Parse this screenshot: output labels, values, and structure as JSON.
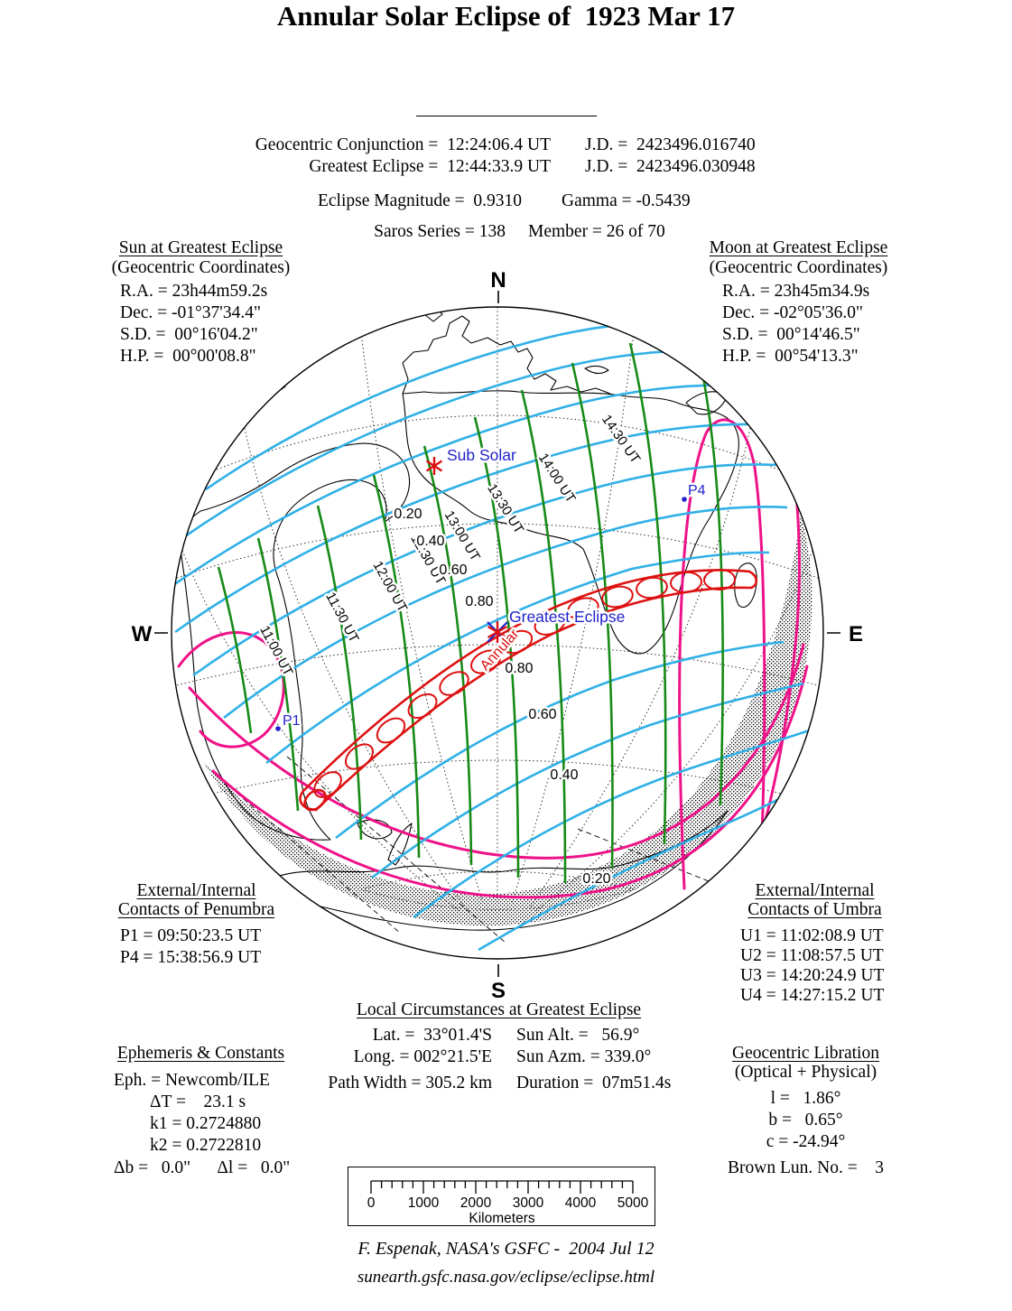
{
  "title": "Annular Solar Eclipse of  1923 Mar 17",
  "header": {
    "conjunction": "Geocentric Conjunction =  12:24:06.4 UT",
    "conjunction_jd": "J.D. =  2423496.016740",
    "greatest": "Greatest Eclipse =  12:44:33.9 UT",
    "greatest_jd": "J.D. =  2423496.030948",
    "magnitude": "Eclipse Magnitude =  0.9310",
    "gamma": "Gamma = -0.5439",
    "saros": "Saros Series = 138",
    "member": "Member = 26 of 70"
  },
  "sun_panel": {
    "heading": "Sun at Greatest Eclipse",
    "subheading": "(Geocentric Coordinates)",
    "rows": [
      "R.A. = 23h44m59.2s",
      "Dec. = -01°37'34.4\"",
      "S.D. =  00°16'04.2\"",
      "H.P. =  00°00'08.8\""
    ]
  },
  "moon_panel": {
    "heading": "Moon at Greatest Eclipse",
    "subheading": "(Geocentric Coordinates)",
    "rows": [
      "R.A. = 23h45m34.9s",
      "Dec. = -02°05'36.0\"",
      "S.D. =  00°14'46.5\"",
      "H.P. =  00°54'13.3\""
    ]
  },
  "penumbra_panel": {
    "heading_line1": "External/Internal",
    "heading_line2": "Contacts of Penumbra",
    "rows": [
      "P1 = 09:50:23.5 UT",
      "P4 = 15:38:56.9 UT"
    ]
  },
  "umbra_panel": {
    "heading_line1": "External/Internal",
    "heading_line2": "Contacts of Umbra",
    "rows": [
      "U1 = 11:02:08.9 UT",
      "U2 = 11:08:57.5 UT",
      "U3 = 14:20:24.9 UT",
      "U4 = 14:27:15.2 UT"
    ]
  },
  "local_panel": {
    "heading": "Local Circumstances at Greatest Eclipse",
    "left_rows": [
      "Lat. =  33°01.4'S",
      "Long. = 002°21.5'E",
      "Path Width = 305.2 km"
    ],
    "right_rows": [
      "Sun Alt. =   56.9°",
      "Sun Azm. = 339.0°",
      "Duration =  07m51.4s"
    ]
  },
  "ephemeris_panel": {
    "heading": "Ephemeris & Constants",
    "rows": [
      "Eph. = Newcomb/ILE",
      "ΔT =    23.1 s",
      "k1 = 0.2724880",
      "k2 = 0.2722810",
      "Δb =   0.0\"      Δl =   0.0\""
    ]
  },
  "libration_panel": {
    "heading": "Geocentric Libration",
    "subheading": "(Optical + Physical)",
    "rows": [
      "l =   1.86°",
      "b =   0.65°",
      "c = -24.94°"
    ],
    "brown": "Brown Lun. No. =    3"
  },
  "map": {
    "north": "N",
    "south": "S",
    "east": "E",
    "west": "W",
    "sub_solar": "Sub Solar",
    "greatest_eclipse": "Greatest Eclipse",
    "p1": "P1",
    "p4": "P4",
    "annular": "Annular",
    "ut_labels": [
      "11:00 UT",
      "11:30 UT",
      "12:00 UT",
      "12:30 UT",
      "13:00 UT",
      "13:30 UT",
      "14:00 UT",
      "14:30 UT"
    ],
    "mag_labels_nw": [
      "0.20",
      "0.40",
      "0.60",
      "0.80"
    ],
    "mag_labels_se": [
      "0.80",
      "0.60",
      "0.40",
      "0.20"
    ],
    "colors": {
      "magnitude_contour": "#2FB0E6",
      "time_contour": "#178A17",
      "annular_path": "#DD1111",
      "penumbra_limit": "#EE1289",
      "map_label_blue": "#2222CC"
    }
  },
  "scale_bar": {
    "labels": [
      "0",
      "1000",
      "2000",
      "3000",
      "4000",
      "5000"
    ],
    "caption": "Kilometers"
  },
  "footer": {
    "credit": "F. Espenak, NASA's GSFC -  2004 Jul 12",
    "url": "sunearth.gsfc.nasa.gov/eclipse/eclipse.html"
  }
}
